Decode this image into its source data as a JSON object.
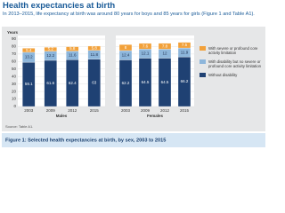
{
  "header": {
    "title": "Health expectancies at birth",
    "subtitle": "In 2013–2015, life expectancy at birth was around 80 years for boys and 85 years for girls (Figure 1 and Table A1)."
  },
  "chart_data": {
    "type": "bar",
    "stacked": true,
    "y_label": "Years",
    "ylim": [
      0,
      90
    ],
    "yticks": [
      0,
      10,
      20,
      30,
      40,
      50,
      60,
      70,
      80,
      90
    ],
    "grid": true,
    "series": [
      {
        "name": "Without disability",
        "color": "#1f4173"
      },
      {
        "name": "With disability but no severe or profound core activity limitation",
        "color": "#8db6db"
      },
      {
        "name": "With severe or profound core activity limitation",
        "color": "#f2a13a"
      }
    ],
    "panels": [
      {
        "name": "Males",
        "categories": [
          "2003",
          "2009",
          "2012",
          "2015"
        ],
        "values": [
          [
            59.1,
            61.6,
            62.4,
            63.0
          ],
          [
            13.2,
            12.2,
            11.6,
            11.8
          ],
          [
            5.4,
            5.2,
            5.8,
            5.8
          ]
        ]
      },
      {
        "name": "Females",
        "categories": [
          "2003",
          "2009",
          "2012",
          "2015"
        ],
        "values": [
          [
            62.2,
            64.5,
            64.5,
            66.2
          ],
          [
            12.4,
            12.1,
            12.0,
            11.9
          ],
          [
            8.0,
            7.6,
            7.8,
            7.5
          ]
        ]
      }
    ]
  },
  "source": "Source: Table A1.",
  "caption": "Figure 1: Selected health expectancies at birth, by sex, 2003 to 2015"
}
